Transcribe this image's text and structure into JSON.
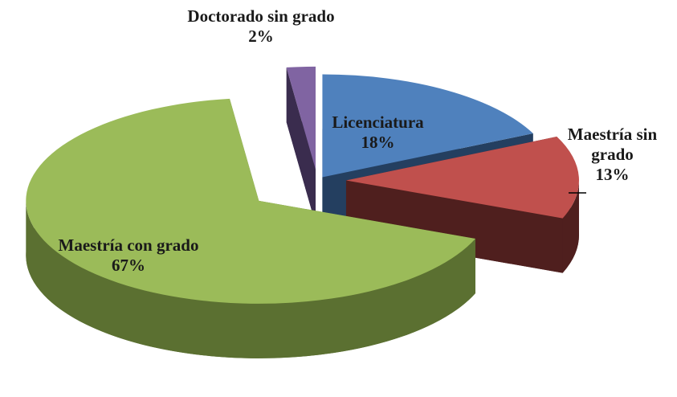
{
  "chart_data": {
    "type": "pie3d",
    "categories": [
      "Licenciatura",
      "Maestría sin grado",
      "Maestría con grado",
      "Doctorado sin grado"
    ],
    "values": [
      18,
      13,
      67,
      2
    ],
    "value_labels": [
      "18%",
      "13%",
      "67%",
      "2%"
    ],
    "colors": [
      "#4f81bd",
      "#c0504d",
      "#9bbb59",
      "#8064a2"
    ],
    "side_colors": [
      "#243f60",
      "#4f1f1e",
      "#5b7031",
      "#3a2c4e"
    ],
    "exploded": true
  }
}
